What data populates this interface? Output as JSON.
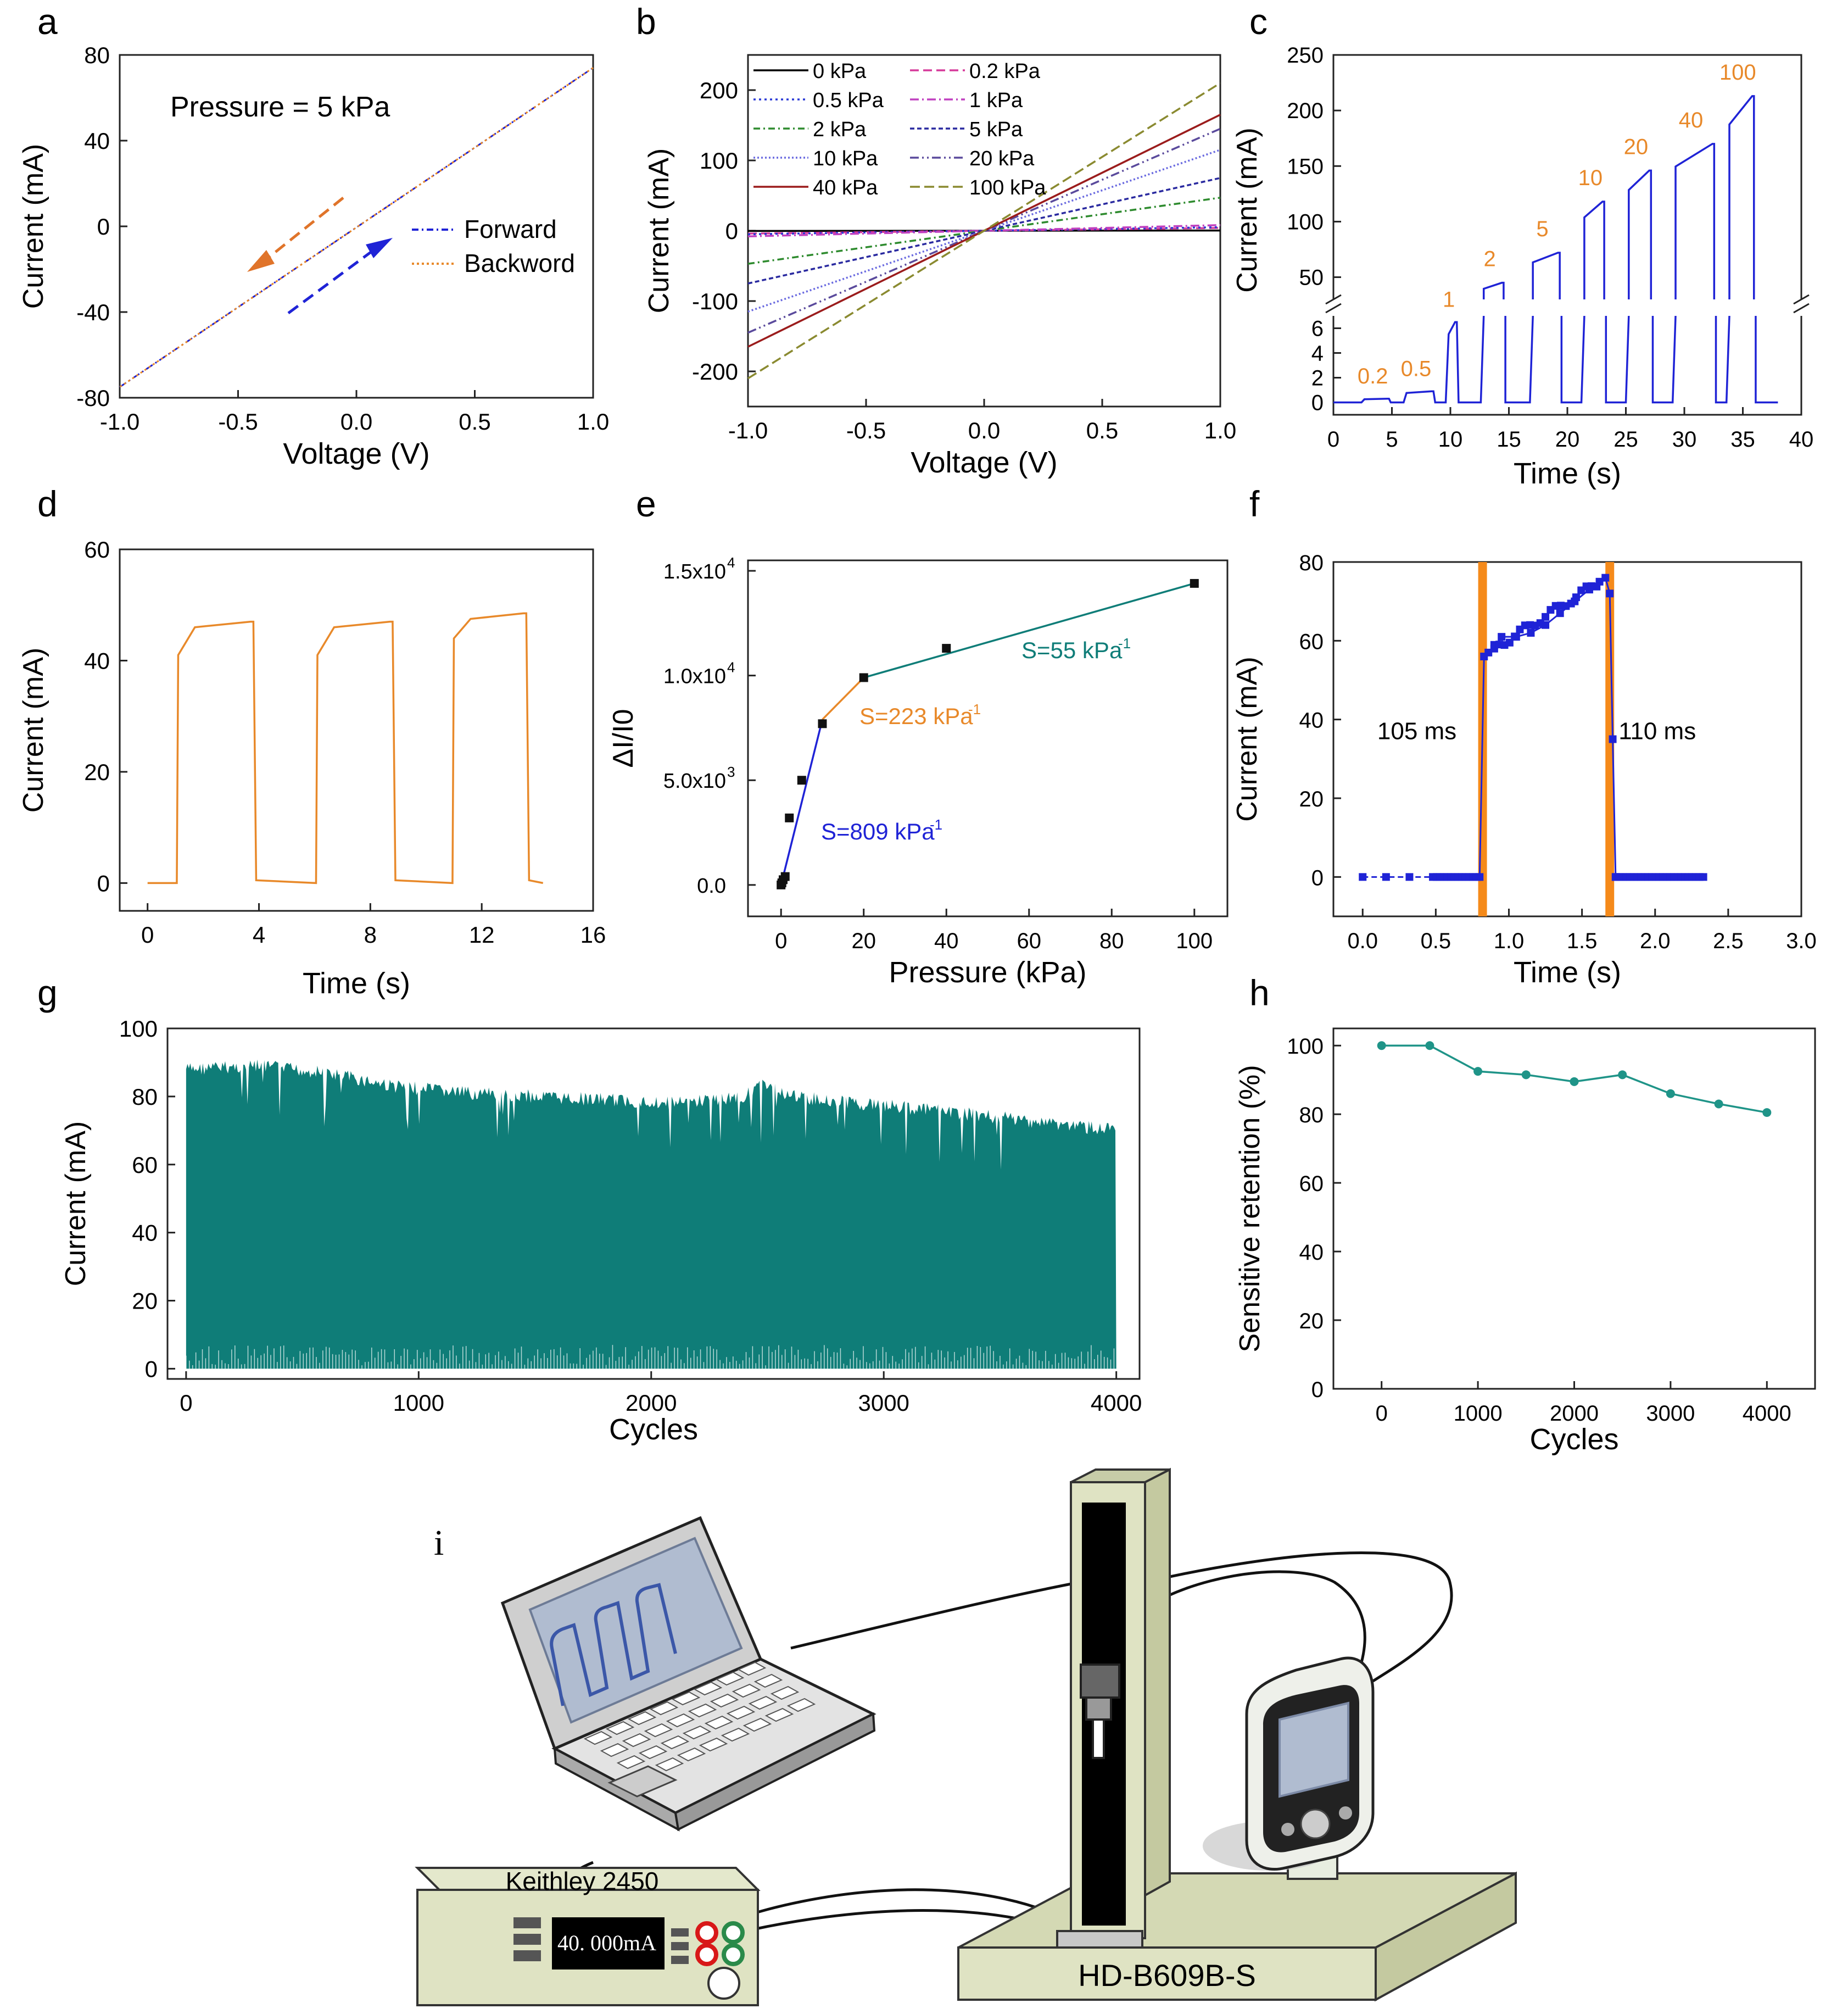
{
  "panels": {
    "a": {
      "letter": "a",
      "pressure_label": "Pressure = 5 kPa"
    },
    "b": {
      "letter": "b"
    },
    "c": {
      "letter": "c"
    },
    "d": {
      "letter": "d"
    },
    "e": {
      "letter": "e"
    },
    "f": {
      "letter": "f"
    },
    "g": {
      "letter": "g"
    },
    "h": {
      "letter": "h"
    },
    "i": {
      "letter": "i"
    }
  },
  "colors": {
    "blue": "#1f23d6",
    "orange": "#e8892a",
    "teal": "#0f7d78",
    "maroon": "#9b1c1c",
    "magenta": "#d63a9a",
    "green": "#2e8b2e",
    "purple": "#5a4a9c",
    "olive": "#8a8a30",
    "violet": "#7a6ad8",
    "teal_line": "#1f9488",
    "green_blue_sq": "#1f23d6"
  },
  "chart_data": [
    {
      "id": "a",
      "type": "line",
      "title": "",
      "xlabel": "Voltage (V)",
      "ylabel": "Current (mA)",
      "xlim": [
        -1.0,
        1.0
      ],
      "ylim": [
        -80,
        80
      ],
      "xticks": [
        -1.0,
        -0.5,
        0.0,
        0.5,
        1.0
      ],
      "xtick_labels": [
        "-1.0",
        "-0.5",
        "0.0",
        "0.5",
        "1.0"
      ],
      "yticks": [
        -80,
        -40,
        0,
        40,
        80
      ],
      "ytick_labels": [
        "-80",
        "-40",
        "0",
        "40",
        "80"
      ],
      "series": [
        {
          "name": "Forward",
          "color": "blue",
          "x": [
            -1.0,
            1.0
          ],
          "y": [
            -75,
            74
          ]
        },
        {
          "name": "Backword",
          "color": "orange",
          "x": [
            1.0,
            -1.0
          ],
          "y": [
            74,
            -75
          ]
        }
      ]
    },
    {
      "id": "b",
      "type": "line",
      "xlabel": "Voltage (V)",
      "ylabel": "Current (mA)",
      "xlim": [
        -1.0,
        1.0
      ],
      "ylim": [
        -250,
        250
      ],
      "xticks": [
        -1.0,
        -0.5,
        0.0,
        0.5,
        1.0
      ],
      "xtick_labels": [
        "-1.0",
        "-0.5",
        "0.0",
        "0.5",
        "1.0"
      ],
      "yticks": [
        -200,
        -100,
        0,
        100,
        200
      ],
      "ytick_labels": [
        "-200",
        "-100",
        "0",
        "100",
        "200"
      ],
      "series": [
        {
          "name": "0 kPa",
          "color": "#000000",
          "slope": 0.3
        },
        {
          "name": "0.2 kPa",
          "color": "#d63a9a",
          "slope": 4
        },
        {
          "name": "0.5 kPa",
          "color": "#2a3ad6",
          "slope": 5
        },
        {
          "name": "1 kPa",
          "color": "#c040c0",
          "slope": 8
        },
        {
          "name": "2 kPa",
          "color": "#2e8b2e",
          "slope": 47
        },
        {
          "name": "5 kPa",
          "color": "#2a2aa0",
          "slope": 75
        },
        {
          "name": "10 kPa",
          "color": "#6a6ae0",
          "slope": 115
        },
        {
          "name": "20 kPa",
          "color": "#5a4a9c",
          "slope": 145
        },
        {
          "name": "40 kPa",
          "color": "#9b1c1c",
          "slope": 165
        },
        {
          "name": "100 kPa",
          "color": "#8a8a30",
          "slope": 210
        }
      ]
    },
    {
      "id": "c",
      "type": "line",
      "xlabel": "Time (s)",
      "ylabel": "Current (mA)",
      "xlim": [
        0,
        40
      ],
      "xticks": [
        0,
        5,
        10,
        15,
        20,
        25,
        30,
        35,
        40
      ],
      "xtick_labels": [
        "0",
        "5",
        "10",
        "15",
        "20",
        "25",
        "30",
        "35",
        "40"
      ],
      "ylim_upper": [
        30,
        250
      ],
      "yticks_upper": [
        50,
        100,
        150,
        200,
        250
      ],
      "ytick_labels_upper": [
        "50",
        "100",
        "150",
        "200",
        "250"
      ],
      "ylim_lower": [
        -1,
        7
      ],
      "yticks_lower": [
        0,
        2,
        4,
        6
      ],
      "ytick_labels_lower": [
        "0",
        "2",
        "4",
        "6"
      ],
      "pulses": [
        {
          "label": "0.2",
          "start": 2.4,
          "end": 4.8,
          "value": 0.3
        },
        {
          "label": "0.5",
          "start": 6.0,
          "end": 8.6,
          "value": 0.9
        },
        {
          "label": "1",
          "start": 9.6,
          "end": 10.6,
          "value": 6.5
        },
        {
          "label": "2",
          "start": 12.6,
          "end": 14.6,
          "value": 45
        },
        {
          "label": "5",
          "start": 16.8,
          "end": 19.4,
          "value": 72
        },
        {
          "label": "10",
          "start": 21.2,
          "end": 23.2,
          "value": 118
        },
        {
          "label": "20",
          "start": 25.0,
          "end": 27.2,
          "value": 146
        },
        {
          "label": "40",
          "start": 29.0,
          "end": 32.6,
          "value": 170
        },
        {
          "label": "100",
          "start": 33.6,
          "end": 36.0,
          "value": 213
        }
      ],
      "end_time": 38
    },
    {
      "id": "d",
      "type": "line",
      "xlabel": "Time (s)",
      "ylabel": "Current (mA)",
      "xlim": [
        -1,
        16
      ],
      "ylim": [
        -5,
        60
      ],
      "xticks": [
        0,
        4,
        8,
        12,
        16
      ],
      "xtick_labels": [
        "0",
        "4",
        "8",
        "12",
        "16"
      ],
      "yticks": [
        0,
        20,
        40,
        60
      ],
      "ytick_labels": [
        "0",
        "20",
        "40",
        "60"
      ],
      "pulses": [
        {
          "start": 1.1,
          "end": 3.8,
          "low": 41,
          "high": 47
        },
        {
          "start": 6.1,
          "end": 8.8,
          "low": 41,
          "high": 47
        },
        {
          "start": 11.0,
          "end": 13.6,
          "low": 44,
          "high": 48.5
        }
      ],
      "end_time": 14.2
    },
    {
      "id": "e",
      "type": "scatter",
      "xlabel": "Pressure (kPa)",
      "ylabel": "ΔI/I0",
      "xlim": [
        -8,
        108
      ],
      "ylim": [
        -1500,
        15500
      ],
      "xticks": [
        0,
        20,
        40,
        60,
        80,
        100
      ],
      "xtick_labels": [
        "0",
        "20",
        "40",
        "60",
        "80",
        "100"
      ],
      "yticks": [
        0,
        5000,
        10000,
        15000
      ],
      "ytick_labels": [
        {
          "mant": "0.0",
          "exp": ""
        },
        {
          "mant": "5.0x10",
          "exp": "3"
        },
        {
          "mant": "1.0x10",
          "exp": "4"
        },
        {
          "mant": "1.5x10",
          "exp": "4"
        }
      ],
      "points": {
        "x": [
          0,
          0.2,
          0.5,
          1,
          2,
          5,
          10,
          20,
          40,
          100
        ],
        "y": [
          0,
          100,
          250,
          400,
          3200,
          5000,
          7700,
          9900,
          11300,
          14400
        ]
      },
      "fits": [
        {
          "label": "S=809 kPa",
          "sup": "-1",
          "color": "blue",
          "x": [
            0,
            10
          ],
          "y": [
            0,
            7900
          ]
        },
        {
          "label": "S=223 kPa",
          "sup": "-1",
          "color": "orange",
          "x": [
            10,
            20
          ],
          "y": [
            7900,
            9900
          ]
        },
        {
          "label": "S=55 kPa",
          "sup": "-1",
          "color": "teal",
          "x": [
            20,
            100
          ],
          "y": [
            9900,
            14400
          ]
        }
      ]
    },
    {
      "id": "f",
      "type": "scatter",
      "xlabel": "Time (s)",
      "ylabel": "Current (mA)",
      "xlim": [
        -0.2,
        3.0
      ],
      "ylim": [
        -10,
        80
      ],
      "xticks": [
        0.0,
        0.5,
        1.0,
        1.5,
        2.0,
        2.5,
        3.0
      ],
      "xtick_labels": [
        "0.0",
        "0.5",
        "1.0",
        "1.5",
        "2.0",
        "2.5",
        "3.0"
      ],
      "yticks": [
        0,
        20,
        40,
        60,
        80
      ],
      "ytick_labels": [
        "0",
        "20",
        "40",
        "60",
        "80"
      ],
      "annotations": [
        {
          "text": "105 ms"
        },
        {
          "text": "110 ms"
        }
      ],
      "bands": [
        {
          "x0": 0.79,
          "x1": 0.85
        },
        {
          "x0": 1.66,
          "x1": 1.72
        }
      ],
      "rise": [
        [
          0.8,
          0
        ],
        [
          0.83,
          56
        ],
        [
          0.86,
          57
        ],
        [
          0.9,
          58
        ],
        [
          0.95,
          61
        ],
        [
          1.05,
          61
        ],
        [
          1.15,
          62
        ],
        [
          1.25,
          64
        ],
        [
          1.35,
          67
        ],
        [
          1.45,
          70
        ],
        [
          1.55,
          73
        ],
        [
          1.62,
          75
        ],
        [
          1.66,
          76
        ],
        [
          1.69,
          72
        ],
        [
          1.71,
          35
        ],
        [
          1.73,
          0
        ]
      ],
      "flat1": [
        0.0,
        0.8
      ],
      "flat2": [
        1.73,
        2.35
      ]
    },
    {
      "id": "g",
      "type": "area",
      "xlabel": "Cycles",
      "ylabel": "Current (mA)",
      "xlim": [
        -80,
        4100
      ],
      "ylim": [
        -3,
        100
      ],
      "xticks": [
        0,
        1000,
        2000,
        3000,
        4000
      ],
      "xtick_labels": [
        "0",
        "1000",
        "2000",
        "3000",
        "4000"
      ],
      "yticks": [
        0,
        20,
        40,
        60,
        80,
        100
      ],
      "ytick_labels": [
        "0",
        "20",
        "40",
        "60",
        "80",
        "100"
      ],
      "envelope_top": [
        [
          0,
          90
        ],
        [
          300,
          91
        ],
        [
          600,
          89
        ],
        [
          900,
          85
        ],
        [
          1200,
          83
        ],
        [
          1500,
          82
        ],
        [
          1800,
          81
        ],
        [
          2100,
          80
        ],
        [
          2400,
          82
        ],
        [
          2500,
          86
        ],
        [
          2600,
          82
        ],
        [
          2900,
          80
        ],
        [
          3200,
          78
        ],
        [
          3600,
          75
        ],
        [
          4000,
          72
        ]
      ]
    },
    {
      "id": "h",
      "type": "line",
      "xlabel": "Cycles",
      "ylabel": "Sensitive retention (%)",
      "xlim": [
        -500,
        4500
      ],
      "ylim": [
        0,
        105
      ],
      "xticks": [
        0,
        1000,
        2000,
        3000,
        4000
      ],
      "xtick_labels": [
        "0",
        "1000",
        "2000",
        "3000",
        "4000"
      ],
      "yticks": [
        0,
        20,
        40,
        60,
        80,
        100
      ],
      "ytick_labels": [
        "0",
        "20",
        "40",
        "60",
        "80",
        "100"
      ],
      "x": [
        0,
        500,
        1000,
        1500,
        2000,
        2500,
        3000,
        3500,
        4000
      ],
      "y": [
        100,
        100,
        92.5,
        91.5,
        89.5,
        91.5,
        86,
        83,
        80.5
      ]
    }
  ],
  "legend_a": [
    {
      "name": "Forward"
    },
    {
      "name": "Backword"
    }
  ],
  "diagram_i": {
    "keithley_label": "Keithley 2450",
    "display_value": "40. 000mA",
    "stand_label": "HD-B609B-S"
  }
}
